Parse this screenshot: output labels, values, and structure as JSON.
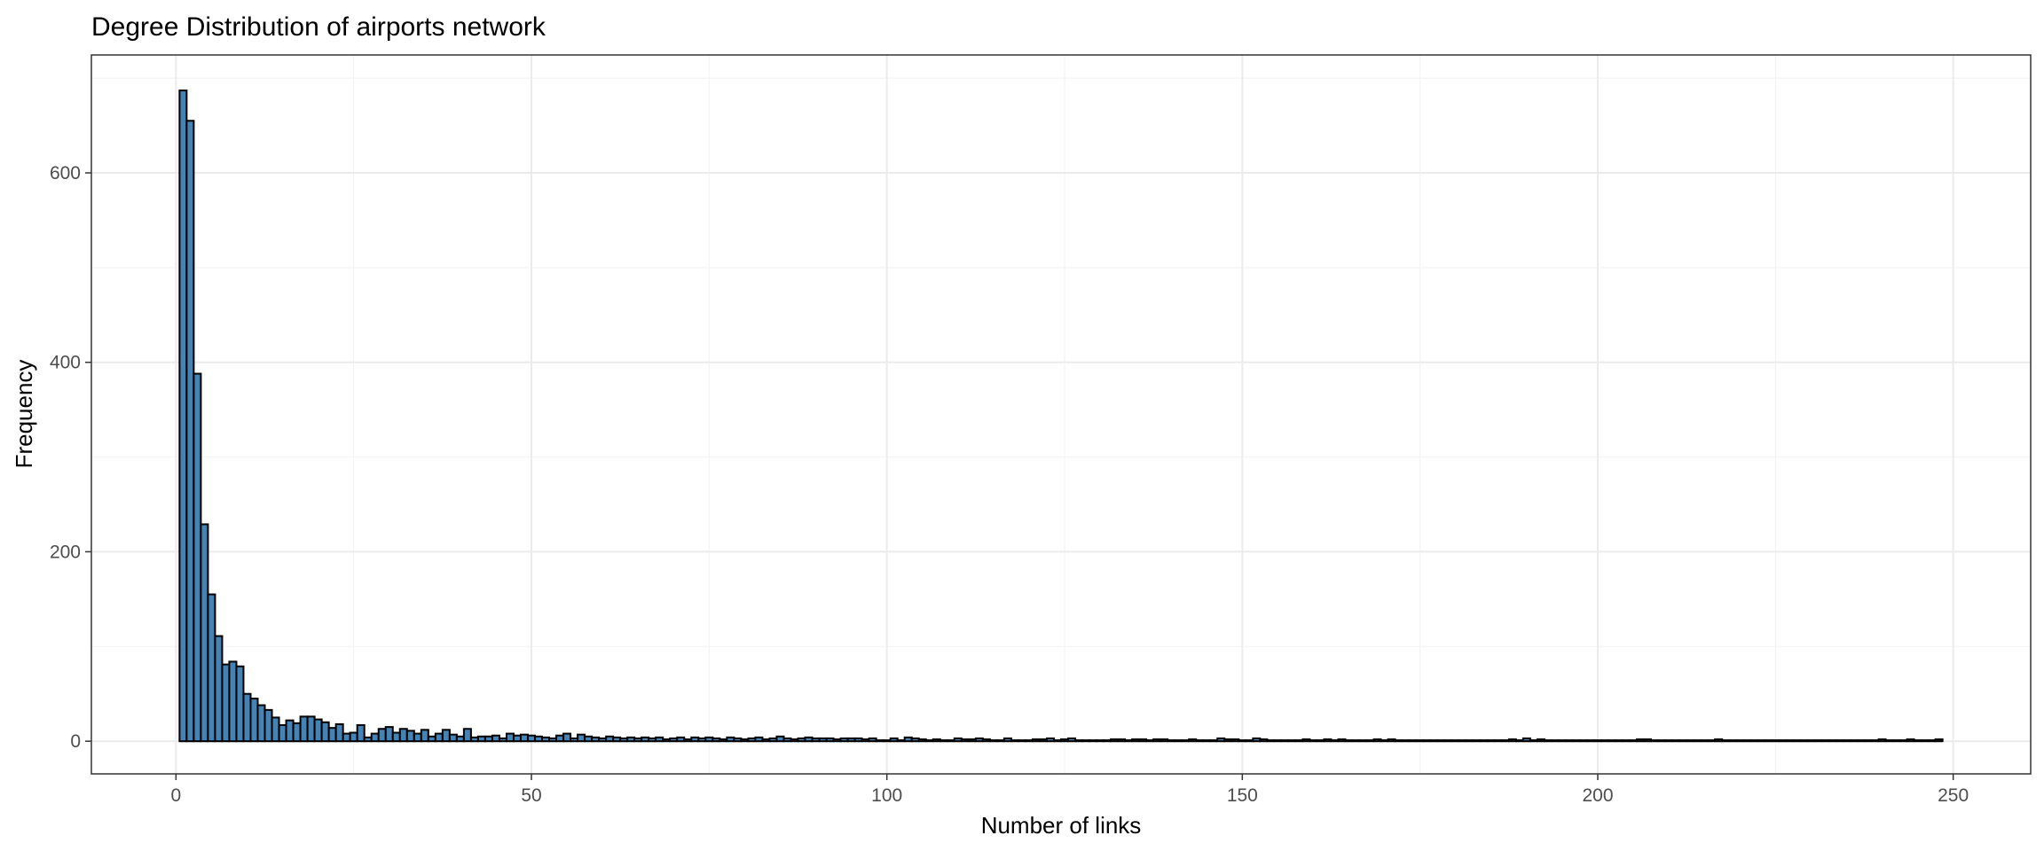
{
  "chart_data": {
    "type": "bar",
    "title": "Degree Distribution of airports network",
    "xlabel": "Number of links",
    "ylabel": "Frequency",
    "xlim": [
      -11.9,
      260.9
    ],
    "ylim": [
      -34.5,
      724.5
    ],
    "x_ticks": [
      0,
      50,
      100,
      150,
      200,
      250
    ],
    "x_tick_labels": [
      "0",
      "50",
      "100",
      "150",
      "200",
      "250"
    ],
    "y_ticks": [
      0,
      200,
      400,
      600
    ],
    "y_tick_labels": [
      "0",
      "200",
      "400",
      "600"
    ],
    "grid": true,
    "bin_width": 1,
    "bins": [
      [
        1,
        687
      ],
      [
        2,
        655
      ],
      [
        3,
        388
      ],
      [
        4,
        229
      ],
      [
        5,
        155
      ],
      [
        6,
        111
      ],
      [
        7,
        81
      ],
      [
        8,
        84
      ],
      [
        9,
        79
      ],
      [
        10,
        50
      ],
      [
        11,
        45
      ],
      [
        12,
        38
      ],
      [
        13,
        33
      ],
      [
        14,
        25
      ],
      [
        15,
        17
      ],
      [
        16,
        22
      ],
      [
        17,
        19
      ],
      [
        18,
        26
      ],
      [
        19,
        26
      ],
      [
        20,
        23
      ],
      [
        21,
        20
      ],
      [
        22,
        14
      ],
      [
        23,
        18
      ],
      [
        24,
        8
      ],
      [
        25,
        9
      ],
      [
        26,
        17
      ],
      [
        27,
        4
      ],
      [
        28,
        8
      ],
      [
        29,
        13
      ],
      [
        30,
        15
      ],
      [
        31,
        9
      ],
      [
        32,
        13
      ],
      [
        33,
        11
      ],
      [
        34,
        8
      ],
      [
        35,
        12
      ],
      [
        36,
        5
      ],
      [
        37,
        8
      ],
      [
        38,
        12
      ],
      [
        39,
        7
      ],
      [
        40,
        5
      ],
      [
        41,
        13
      ],
      [
        42,
        4
      ],
      [
        43,
        5
      ],
      [
        44,
        5
      ],
      [
        45,
        6
      ],
      [
        46,
        3
      ],
      [
        47,
        8
      ],
      [
        48,
        6
      ],
      [
        49,
        7
      ],
      [
        50,
        6
      ],
      [
        51,
        5
      ],
      [
        52,
        4
      ],
      [
        53,
        3
      ],
      [
        54,
        6
      ],
      [
        55,
        8
      ],
      [
        56,
        3
      ],
      [
        57,
        7
      ],
      [
        58,
        5
      ],
      [
        59,
        4
      ],
      [
        60,
        3
      ],
      [
        61,
        5
      ],
      [
        62,
        4
      ],
      [
        63,
        3
      ],
      [
        64,
        4
      ],
      [
        65,
        3
      ],
      [
        66,
        4
      ],
      [
        67,
        3
      ],
      [
        68,
        4
      ],
      [
        69,
        2
      ],
      [
        70,
        3
      ],
      [
        71,
        4
      ],
      [
        72,
        2
      ],
      [
        73,
        4
      ],
      [
        74,
        3
      ],
      [
        75,
        4
      ],
      [
        76,
        3
      ],
      [
        77,
        2
      ],
      [
        78,
        4
      ],
      [
        79,
        3
      ],
      [
        80,
        2
      ],
      [
        81,
        3
      ],
      [
        82,
        4
      ],
      [
        83,
        2
      ],
      [
        84,
        3
      ],
      [
        85,
        5
      ],
      [
        86,
        3
      ],
      [
        87,
        2
      ],
      [
        88,
        3
      ],
      [
        89,
        4
      ],
      [
        90,
        3
      ],
      [
        91,
        3
      ],
      [
        92,
        3
      ],
      [
        93,
        2
      ],
      [
        94,
        3
      ],
      [
        95,
        3
      ],
      [
        96,
        3
      ],
      [
        97,
        2
      ],
      [
        98,
        3
      ],
      [
        99,
        1
      ],
      [
        100,
        1
      ],
      [
        101,
        3
      ],
      [
        102,
        1
      ],
      [
        103,
        4
      ],
      [
        104,
        3
      ],
      [
        105,
        2
      ],
      [
        106,
        1
      ],
      [
        107,
        2
      ],
      [
        108,
        1
      ],
      [
        109,
        1
      ],
      [
        110,
        3
      ],
      [
        111,
        2
      ],
      [
        112,
        2
      ],
      [
        113,
        3
      ],
      [
        114,
        2
      ],
      [
        115,
        1
      ],
      [
        116,
        1
      ],
      [
        117,
        3
      ],
      [
        118,
        1
      ],
      [
        119,
        1
      ],
      [
        120,
        1
      ],
      [
        121,
        2
      ],
      [
        122,
        2
      ],
      [
        123,
        3
      ],
      [
        124,
        1
      ],
      [
        125,
        2
      ],
      [
        126,
        3
      ],
      [
        127,
        1
      ],
      [
        128,
        1
      ],
      [
        129,
        1
      ],
      [
        130,
        1
      ],
      [
        131,
        1
      ],
      [
        132,
        2
      ],
      [
        133,
        2
      ],
      [
        134,
        1
      ],
      [
        135,
        2
      ],
      [
        136,
        2
      ],
      [
        137,
        1
      ],
      [
        138,
        2
      ],
      [
        139,
        2
      ],
      [
        140,
        1
      ],
      [
        141,
        1
      ],
      [
        142,
        1
      ],
      [
        143,
        2
      ],
      [
        144,
        1
      ],
      [
        145,
        1
      ],
      [
        146,
        1
      ],
      [
        147,
        3
      ],
      [
        148,
        2
      ],
      [
        149,
        2
      ],
      [
        150,
        1
      ],
      [
        151,
        1
      ],
      [
        152,
        3
      ],
      [
        153,
        2
      ],
      [
        154,
        1
      ],
      [
        155,
        1
      ],
      [
        156,
        1
      ],
      [
        157,
        1
      ],
      [
        158,
        1
      ],
      [
        159,
        2
      ],
      [
        160,
        1
      ],
      [
        161,
        1
      ],
      [
        162,
        2
      ],
      [
        163,
        1
      ],
      [
        164,
        2
      ],
      [
        165,
        1
      ],
      [
        166,
        1
      ],
      [
        167,
        1
      ],
      [
        168,
        1
      ],
      [
        169,
        2
      ],
      [
        170,
        1
      ],
      [
        171,
        2
      ],
      [
        172,
        1
      ],
      [
        173,
        1
      ],
      [
        174,
        1
      ],
      [
        175,
        1
      ],
      [
        176,
        1
      ],
      [
        177,
        1
      ],
      [
        178,
        1
      ],
      [
        179,
        1
      ],
      [
        180,
        1
      ],
      [
        181,
        1
      ],
      [
        182,
        1
      ],
      [
        183,
        1
      ],
      [
        184,
        1
      ],
      [
        185,
        1
      ],
      [
        186,
        1
      ],
      [
        187,
        1
      ],
      [
        188,
        2
      ],
      [
        189,
        1
      ],
      [
        190,
        3
      ],
      [
        191,
        1
      ],
      [
        192,
        2
      ],
      [
        193,
        1
      ],
      [
        194,
        1
      ],
      [
        195,
        1
      ],
      [
        196,
        1
      ],
      [
        197,
        1
      ],
      [
        198,
        1
      ],
      [
        199,
        1
      ],
      [
        200,
        1
      ],
      [
        201,
        1
      ],
      [
        202,
        1
      ],
      [
        203,
        1
      ],
      [
        204,
        1
      ],
      [
        205,
        1
      ],
      [
        206,
        2
      ],
      [
        207,
        2
      ],
      [
        208,
        1
      ],
      [
        209,
        1
      ],
      [
        210,
        1
      ],
      [
        211,
        1
      ],
      [
        212,
        1
      ],
      [
        213,
        1
      ],
      [
        214,
        1
      ],
      [
        215,
        1
      ],
      [
        216,
        1
      ],
      [
        217,
        2
      ],
      [
        218,
        1
      ],
      [
        219,
        1
      ],
      [
        220,
        1
      ],
      [
        221,
        1
      ],
      [
        222,
        1
      ],
      [
        223,
        1
      ],
      [
        224,
        1
      ],
      [
        225,
        1
      ],
      [
        226,
        1
      ],
      [
        227,
        1
      ],
      [
        228,
        1
      ],
      [
        229,
        1
      ],
      [
        230,
        1
      ],
      [
        231,
        1
      ],
      [
        232,
        1
      ],
      [
        233,
        1
      ],
      [
        234,
        1
      ],
      [
        235,
        1
      ],
      [
        236,
        1
      ],
      [
        237,
        1
      ],
      [
        238,
        1
      ],
      [
        239,
        1
      ],
      [
        240,
        2
      ],
      [
        241,
        1
      ],
      [
        242,
        1
      ],
      [
        243,
        1
      ],
      [
        244,
        2
      ],
      [
        245,
        1
      ],
      [
        246,
        1
      ],
      [
        247,
        1
      ],
      [
        248,
        2
      ]
    ],
    "colors": {
      "bar_fill": "#4682b4",
      "bar_outline": "#000000",
      "grid": "#ebebeb",
      "panel_border": "#333333",
      "tick_text": "#4d4d4d"
    }
  }
}
